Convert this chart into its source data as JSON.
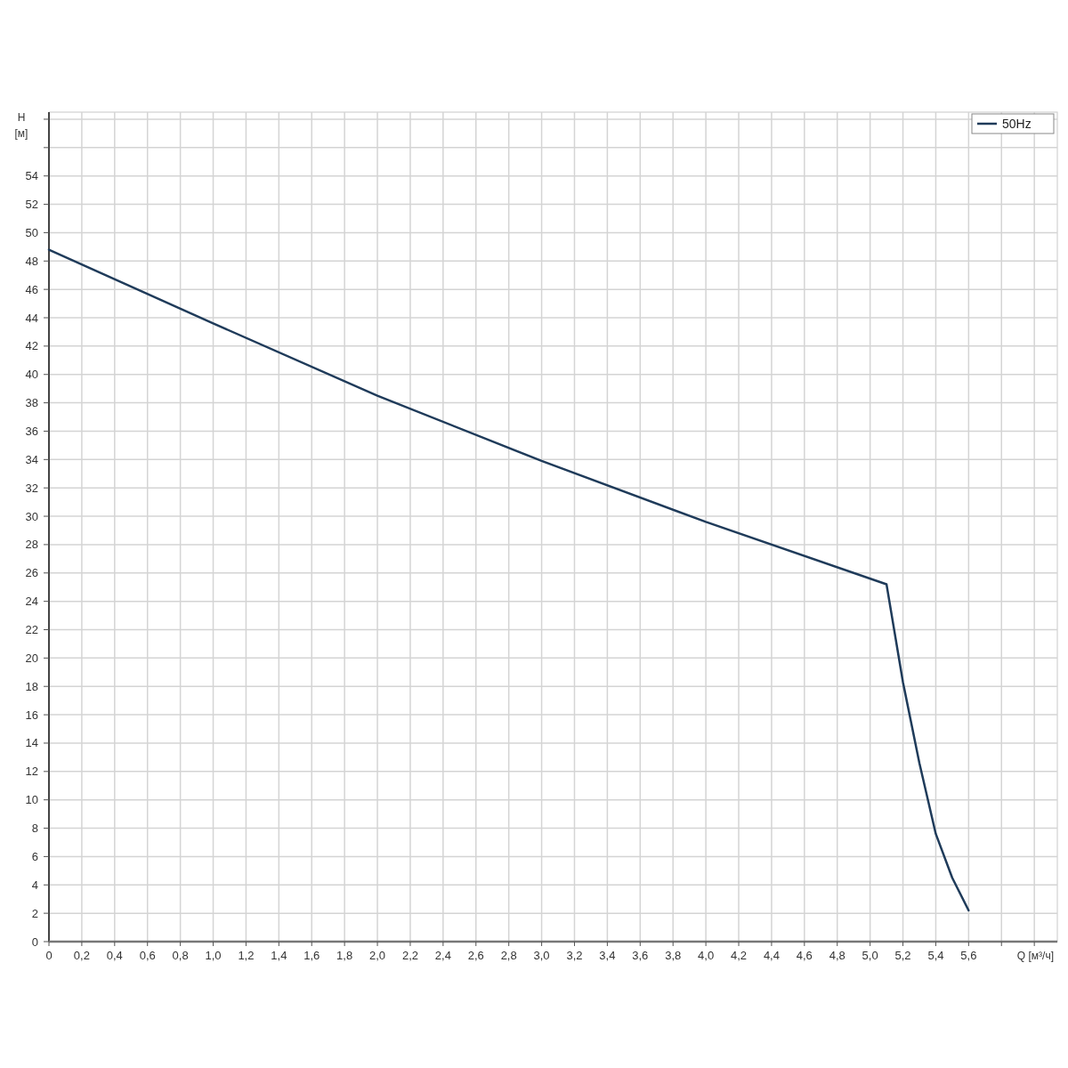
{
  "chart_data": {
    "type": "line",
    "xlabel": "Q [м³/ч]",
    "ylabel": "H [м]",
    "series": [
      {
        "name": "50Hz",
        "color": "#1f3b5a",
        "x": [
          0,
          1.0,
          2.0,
          3.0,
          4.0,
          5.1,
          5.2,
          5.3,
          5.4,
          5.5,
          5.6
        ],
        "values": [
          48.8,
          43.6,
          38.5,
          33.9,
          29.6,
          25.2,
          18.3,
          12.6,
          7.6,
          4.5,
          2.2
        ]
      }
    ],
    "xlim": [
      0,
      6.14
    ],
    "ylim": [
      0,
      58.5
    ],
    "xticks": [
      0,
      {
        "value": 0.2,
        "label": "0,2"
      },
      {
        "value": 0.4,
        "label": "0,4"
      },
      {
        "value": 0.6,
        "label": "0,6"
      },
      {
        "value": 0.8,
        "label": "0,8"
      },
      {
        "value": 1.0,
        "label": "1,0"
      },
      {
        "value": 1.2,
        "label": "1,2"
      },
      {
        "value": 1.4,
        "label": "1,4"
      },
      {
        "value": 1.6,
        "label": "1,6"
      },
      {
        "value": 1.8,
        "label": "1,8"
      },
      {
        "value": 2.0,
        "label": "2,0"
      },
      {
        "value": 2.2,
        "label": "2,2"
      },
      {
        "value": 2.4,
        "label": "2,4"
      },
      {
        "value": 2.6,
        "label": "2,6"
      },
      {
        "value": 2.8,
        "label": "2,8"
      },
      {
        "value": 3.0,
        "label": "3,0"
      },
      {
        "value": 3.2,
        "label": "3,2"
      },
      {
        "value": 3.4,
        "label": "3,4"
      },
      {
        "value": 3.6,
        "label": "3,6"
      },
      {
        "value": 3.8,
        "label": "3,8"
      },
      {
        "value": 4.0,
        "label": "4,0"
      },
      {
        "value": 4.2,
        "label": "4,2"
      },
      {
        "value": 4.4,
        "label": "4,4"
      },
      {
        "value": 4.6,
        "label": "4,6"
      },
      {
        "value": 4.8,
        "label": "4,8"
      },
      {
        "value": 5.0,
        "label": "5,0"
      },
      {
        "value": 5.2,
        "label": "5,2"
      },
      {
        "value": 5.4,
        "label": "5,4"
      },
      {
        "value": 5.6,
        "label": "5,6"
      },
      {
        "value": 5.8,
        "label": null
      },
      {
        "value": 6.0,
        "label": null
      }
    ],
    "yticks": [
      0,
      2,
      4,
      6,
      8,
      10,
      12,
      14,
      16,
      18,
      20,
      22,
      24,
      26,
      28,
      30,
      32,
      34,
      36,
      38,
      40,
      42,
      44,
      46,
      48,
      50,
      52,
      54,
      {
        "value": 56,
        "label": null
      },
      {
        "value": 58,
        "label": null
      }
    ],
    "grid": true,
    "legend": "top right",
    "marker": "none",
    "line_style": "solid"
  }
}
